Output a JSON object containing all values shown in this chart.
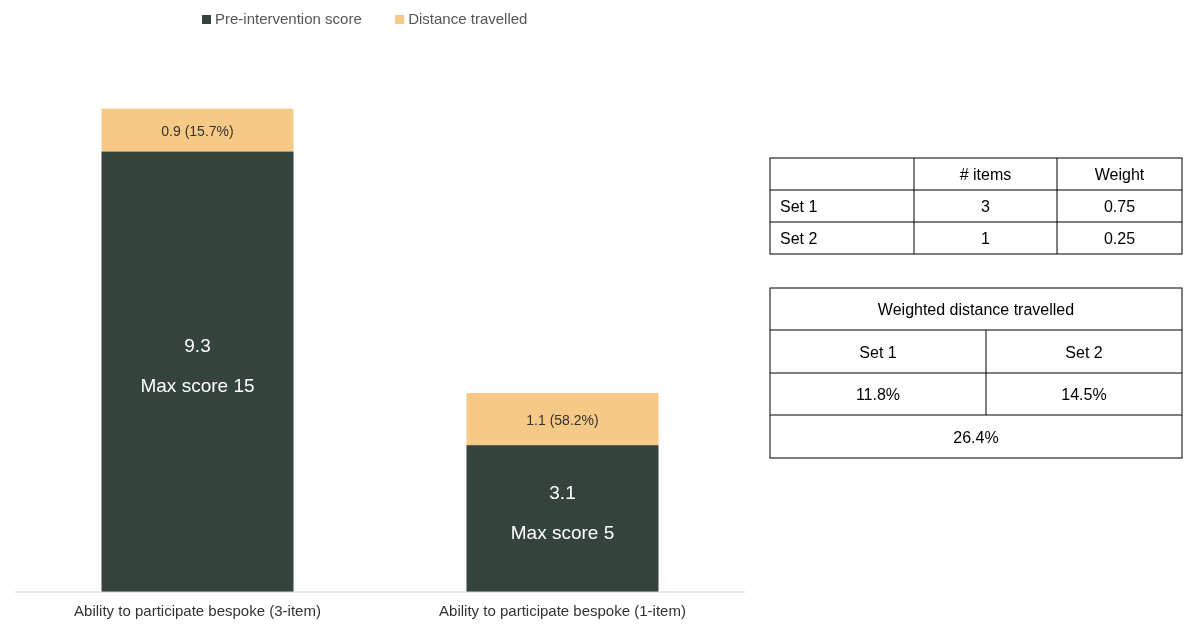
{
  "chart_data": [
    {
      "type": "bar",
      "stacked": true,
      "legend": "top",
      "categories": [
        "Ability to participate bespoke (3-item)",
        "Ability to participate bespoke (1-item)"
      ],
      "series": [
        {
          "name": "Pre-intervention score",
          "color": "#34443c",
          "values": [
            9.3,
            3.1
          ],
          "value_labels": [
            "9.3",
            "3.1"
          ]
        },
        {
          "name": "Distance travelled",
          "color": "#f6c986",
          "values": [
            0.9,
            1.1
          ],
          "value_labels": [
            "0.9 (15.7%)",
            "1.1 (58.2%)"
          ]
        }
      ],
      "annotations": [
        "Max score 15",
        "Max score 5"
      ]
    },
    {
      "type": "other",
      "annotations": [
        "# items",
        "Weight",
        "Set 1",
        "3",
        "0.75",
        "Set 2",
        "1",
        "0.25",
        "Weighted distance travelled",
        "Set 1",
        "Set 2",
        "11.8%",
        "14.5%",
        "26.4%"
      ]
    }
  ]
}
